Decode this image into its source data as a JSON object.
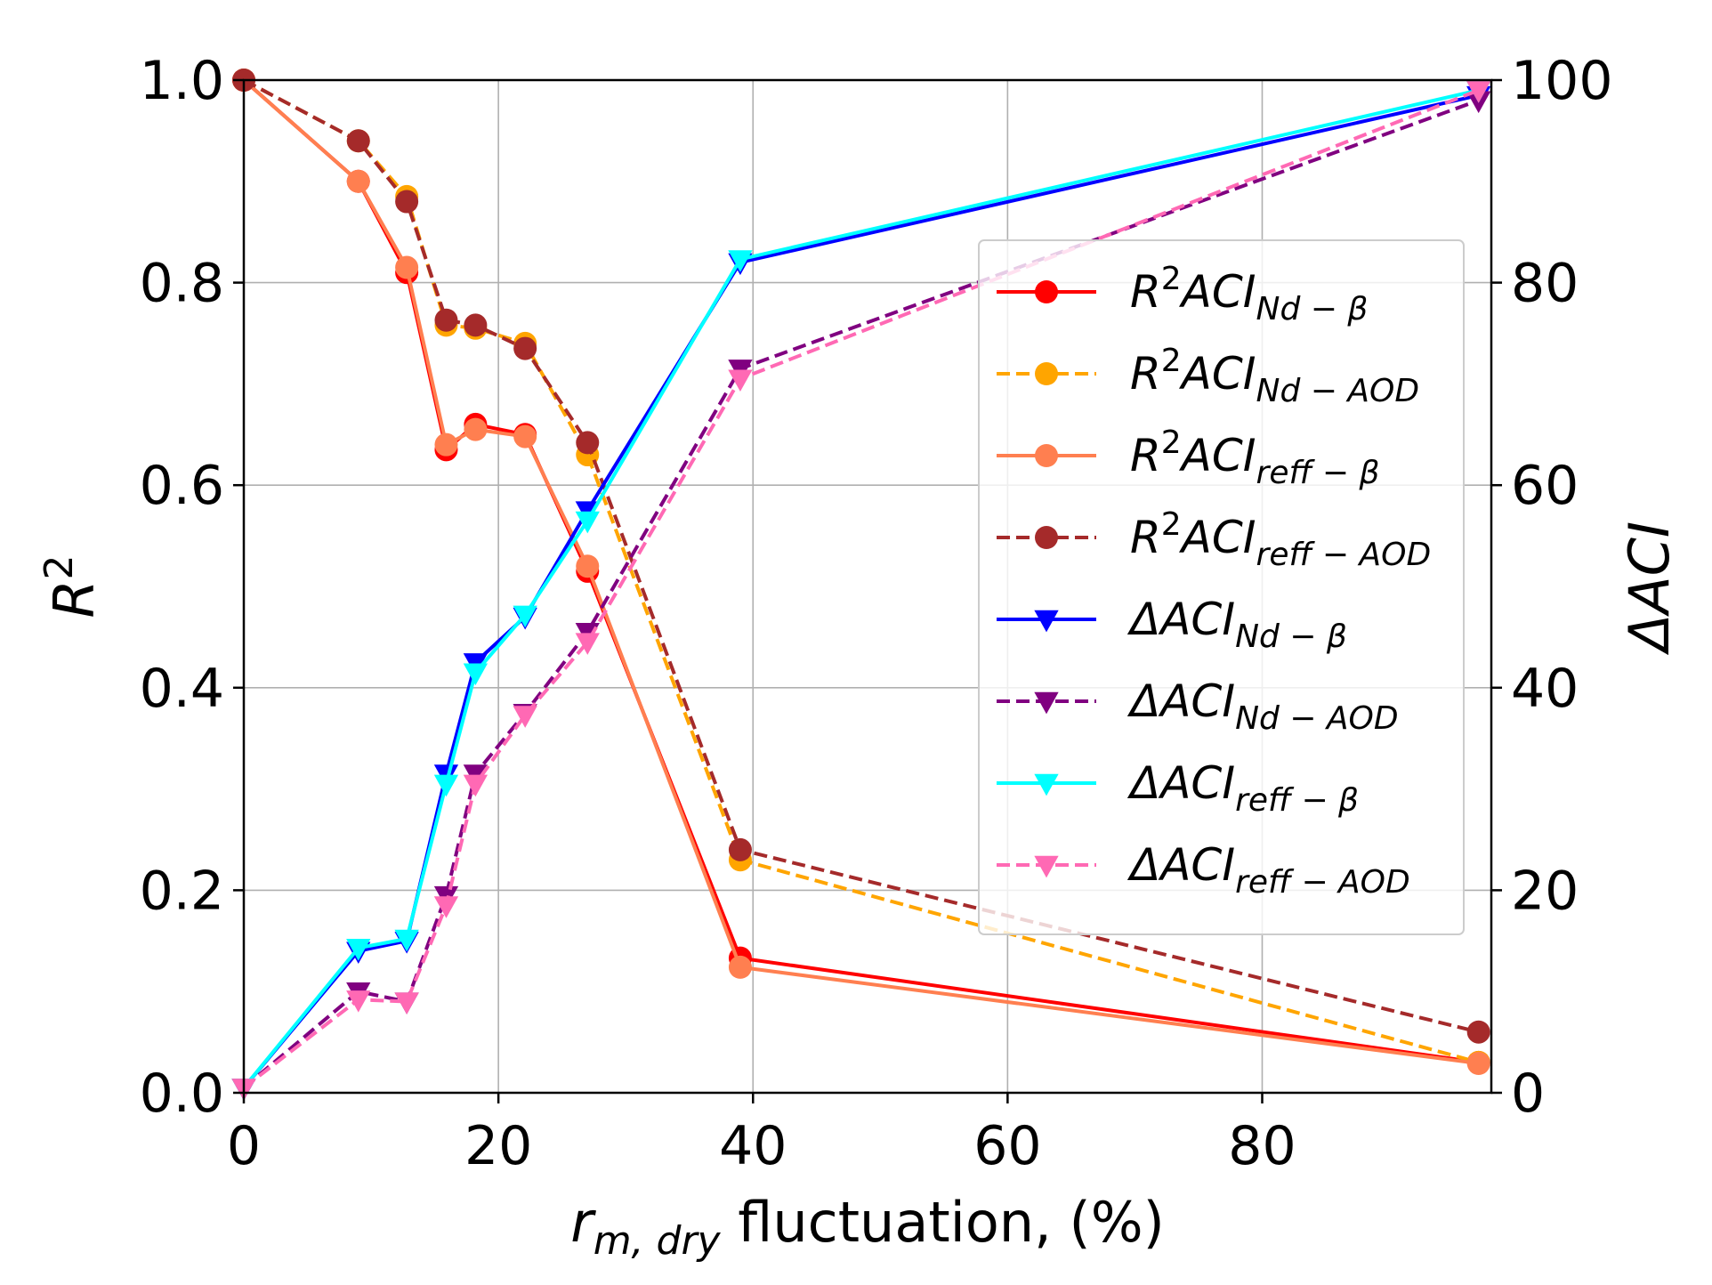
{
  "chart_data": {
    "type": "line",
    "title": "",
    "xlabel": {
      "sub": "m, dry",
      "main": "r",
      "suffix": " fluctuation, (%)"
    },
    "ylabel_left": {
      "main": "R",
      "sup": "2"
    },
    "ylabel_right": "ΔACI",
    "xlim": [
      0,
      98
    ],
    "ylim_left": [
      0,
      1
    ],
    "ylim_right": [
      0,
      100
    ],
    "x_ticks": [
      "0",
      "20",
      "40",
      "60",
      "80"
    ],
    "x_tick_values": [
      0,
      20,
      40,
      60,
      80
    ],
    "y_left_ticks": [
      "0.0",
      "0.2",
      "0.4",
      "0.6",
      "0.8",
      "1.0"
    ],
    "y_left_tick_values": [
      0,
      0.2,
      0.4,
      0.6,
      0.8,
      1.0
    ],
    "y_right_ticks": [
      "0",
      "20",
      "40",
      "60",
      "80",
      "100"
    ],
    "y_right_tick_values": [
      0,
      20,
      40,
      60,
      80,
      100
    ],
    "grid": true,
    "legend_position": "center-right",
    "x": [
      0,
      9,
      12.8,
      15.9,
      18.2,
      22.1,
      27,
      39,
      97
    ],
    "series": [
      {
        "name": "R²ACI_Nd-β",
        "legend_main": "R",
        "legend_sup": "2",
        "legend_rest": "ACI",
        "legend_sub": "Nd − β",
        "axis": "left",
        "marker": "circle",
        "dash": false,
        "color": "#ff0000",
        "values": [
          1.0,
          0.9,
          0.81,
          0.635,
          0.66,
          0.65,
          0.515,
          0.133,
          0.03
        ]
      },
      {
        "name": "R²ACI_Nd-AOD",
        "legend_main": "R",
        "legend_sup": "2",
        "legend_rest": "ACI",
        "legend_sub": "Nd − AOD",
        "axis": "left",
        "marker": "circle",
        "dash": true,
        "color": "#ffa500",
        "values": [
          1.0,
          0.94,
          0.885,
          0.758,
          0.755,
          0.74,
          0.63,
          0.23,
          0.03
        ]
      },
      {
        "name": "R²ACI_reff-β",
        "legend_main": "R",
        "legend_sup": "2",
        "legend_rest": "ACI",
        "legend_sub": "reff − β",
        "axis": "left",
        "marker": "circle",
        "dash": false,
        "color": "#ff7f50",
        "values": [
          1.0,
          0.9,
          0.815,
          0.64,
          0.655,
          0.648,
          0.52,
          0.124,
          0.029
        ]
      },
      {
        "name": "R²ACI_reff-AOD",
        "legend_main": "R",
        "legend_sup": "2",
        "legend_rest": "ACI",
        "legend_sub": "reff − AOD",
        "axis": "left",
        "marker": "circle",
        "dash": true,
        "color": "#a52a2a",
        "values": [
          1.0,
          0.94,
          0.88,
          0.763,
          0.758,
          0.735,
          0.642,
          0.24,
          0.06
        ]
      },
      {
        "name": "ΔACI_Nd-β",
        "legend_main": "ΔACI",
        "legend_sup": "",
        "legend_rest": "",
        "legend_sub": "Nd − β",
        "axis": "right",
        "marker": "triangle-down",
        "dash": false,
        "color": "#0000ff",
        "values": [
          0.5,
          14,
          15,
          31.5,
          42.5,
          47,
          57.5,
          82,
          98.5
        ]
      },
      {
        "name": "ΔACI_Nd-AOD",
        "legend_main": "ΔACI",
        "legend_sup": "",
        "legend_rest": "",
        "legend_sub": "Nd − AOD",
        "axis": "right",
        "marker": "triangle-down",
        "dash": true,
        "color": "#800080",
        "values": [
          0.5,
          10,
          9,
          19.5,
          31.5,
          37.5,
          45.5,
          71.5,
          98
        ]
      },
      {
        "name": "ΔACI_reff-β",
        "legend_main": "ΔACI",
        "legend_sup": "",
        "legend_rest": "",
        "legend_sub": "reff − β",
        "axis": "right",
        "marker": "triangle-down",
        "dash": false,
        "color": "#00ffff",
        "values": [
          0.5,
          14.3,
          15.2,
          30.5,
          41.5,
          47.2,
          56.5,
          82.3,
          99
        ]
      },
      {
        "name": "ΔACI_reff-AOD",
        "legend_main": "ΔACI",
        "legend_sup": "",
        "legend_rest": "",
        "legend_sub": "reff − AOD",
        "axis": "right",
        "marker": "triangle-down",
        "dash": true,
        "color": "#ff69b4",
        "values": [
          0.5,
          9.2,
          9,
          18.5,
          30.5,
          37.3,
          44.5,
          70.5,
          99
        ]
      }
    ]
  }
}
